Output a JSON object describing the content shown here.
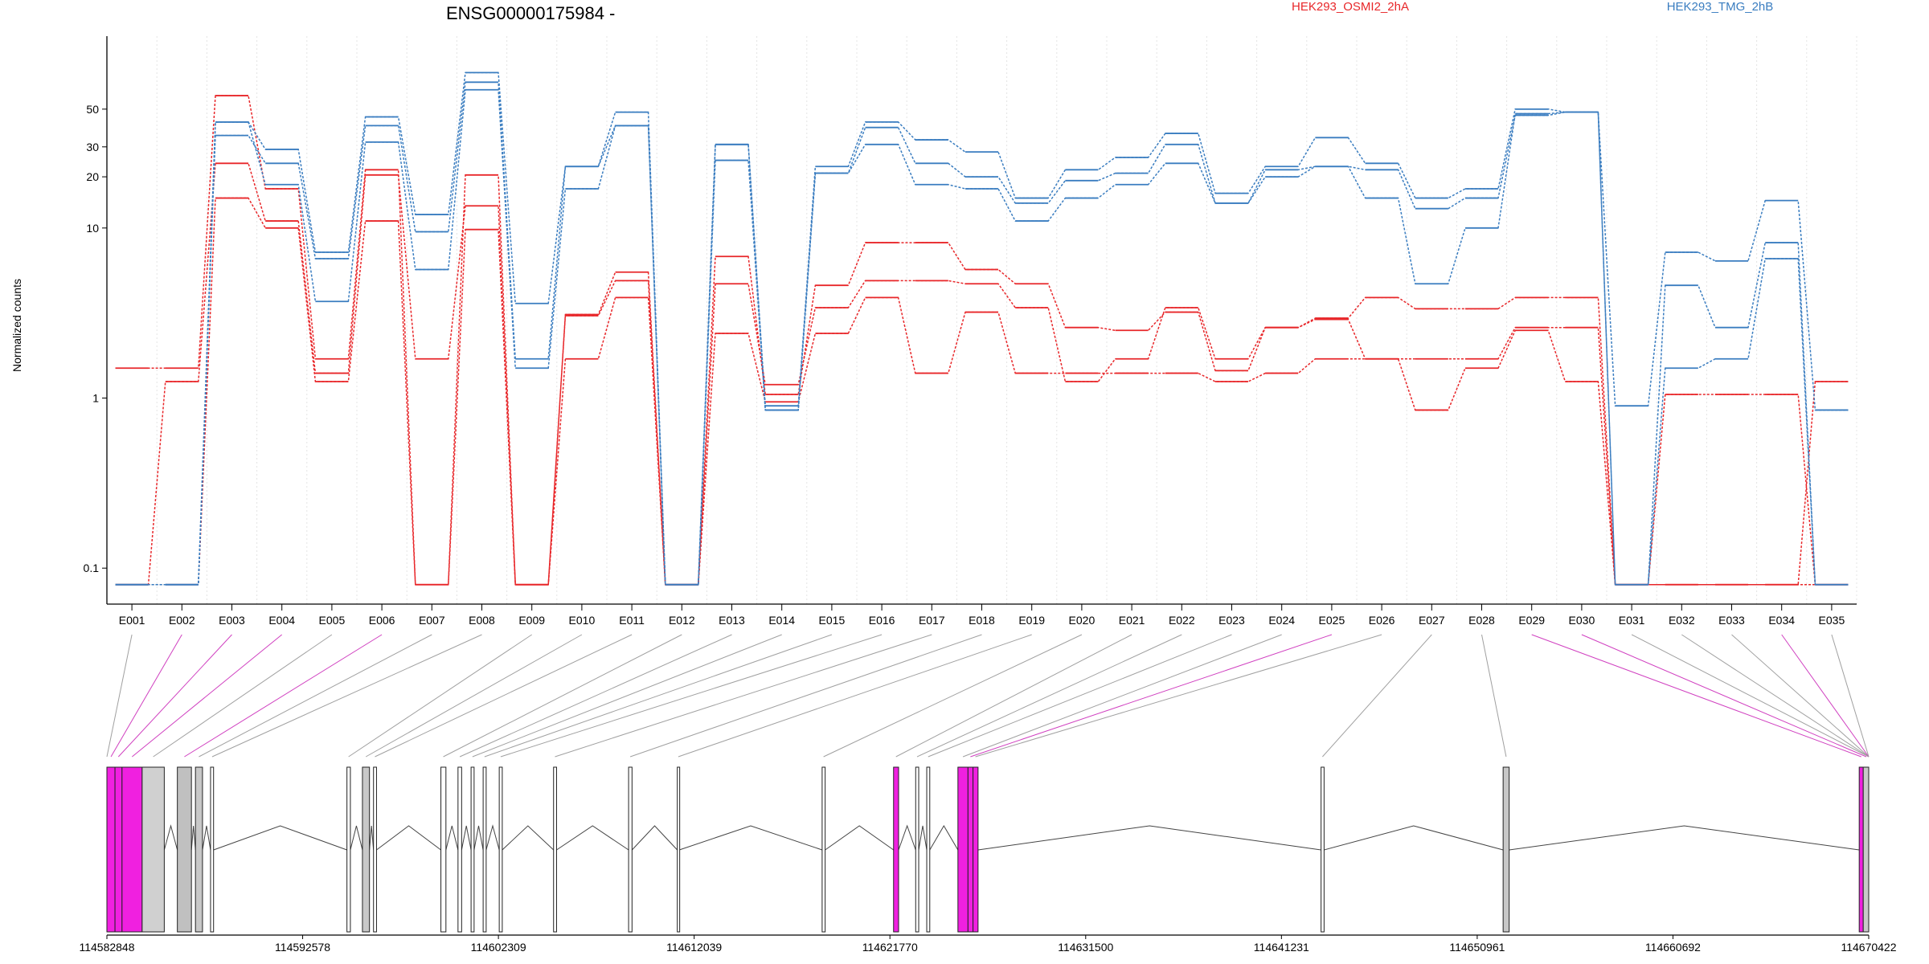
{
  "chart_data": {
    "type": "line",
    "title": "ENSG00000175984 -",
    "ylabel": "Normalized counts",
    "yscale": "log",
    "yticks": [
      "0.1",
      "1",
      "10",
      "20",
      "30",
      "50"
    ],
    "grid": "vertical",
    "legend": [
      "HEK293_OSMI2_2hA",
      "HEK293_TMG_2hB"
    ],
    "legend_placement": "top",
    "categories": [
      "E001",
      "E002",
      "E003",
      "E004",
      "E005",
      "E006",
      "E007",
      "E008",
      "E009",
      "E010",
      "E011",
      "E012",
      "E013",
      "E014",
      "E015",
      "E016",
      "E017",
      "E018",
      "E019",
      "E020",
      "E021",
      "E022",
      "E023",
      "E024",
      "E025",
      "E026",
      "E027",
      "E028",
      "E029",
      "E030",
      "E031",
      "E032",
      "E033",
      "E034",
      "E035"
    ],
    "series": [
      {
        "name": "HEK293_OSMI2_2hA",
        "color": "#e8272a",
        "values": [
          1.5,
          1.5,
          60,
          17,
          1.7,
          22,
          0.08,
          20.5,
          0.08,
          3.1,
          5.5,
          0.08,
          6.8,
          1.05,
          4.6,
          8.2,
          8.2,
          5.7,
          4.7,
          2.6,
          2.5,
          3.2,
          1.45,
          2.6,
          2.95,
          3.9,
          3.35,
          3.35,
          3.9,
          3.9,
          0.08,
          0.08,
          0.08,
          0.08,
          1.25
        ]
      },
      {
        "name": "HEK293_OSMI2_2hA",
        "color": "#e8272a",
        "values": [
          0.08,
          1.25,
          24,
          11,
          1.4,
          20.5,
          1.7,
          13.5,
          0.08,
          3.05,
          4.9,
          0.08,
          4.7,
          1.2,
          3.4,
          4.9,
          4.9,
          4.7,
          3.4,
          1.25,
          1.7,
          3.4,
          1.7,
          2.6,
          2.9,
          1.7,
          1.7,
          1.7,
          2.6,
          2.6,
          0.08,
          1.05,
          1.05,
          1.05,
          0.08
        ]
      },
      {
        "name": "HEK293_OSMI2_2hA",
        "color": "#e8272a",
        "values": [
          0.08,
          0.08,
          15,
          10,
          1.25,
          11,
          0.08,
          9.8,
          0.08,
          1.7,
          3.9,
          0.08,
          2.4,
          0.95,
          2.4,
          3.9,
          1.4,
          3.2,
          1.4,
          1.4,
          1.4,
          1.4,
          1.25,
          1.4,
          1.7,
          1.7,
          0.85,
          1.5,
          2.5,
          1.25,
          0.08,
          0.08,
          0.08,
          0.08,
          0.08
        ]
      },
      {
        "name": "HEK293_TMG_2hB",
        "color": "#3a7dc0",
        "values": [
          0.08,
          0.08,
          42,
          29,
          7.2,
          45,
          12,
          82,
          3.6,
          23,
          48,
          0.08,
          31,
          0.9,
          23,
          42,
          33,
          28,
          15,
          22,
          26,
          36,
          16,
          23,
          34,
          24,
          15,
          17,
          50,
          48,
          0.9,
          7.2,
          6.4,
          14.5,
          0.85
        ]
      },
      {
        "name": "HEK293_TMG_2hB",
        "color": "#3a7dc0",
        "values": [
          0.08,
          0.08,
          35,
          24,
          6.6,
          40,
          9.5,
          72,
          1.7,
          23,
          40,
          0.08,
          25,
          0.85,
          21,
          39,
          24,
          20,
          14,
          19,
          21,
          31,
          14,
          22,
          23,
          22,
          13,
          15,
          46,
          48,
          0.08,
          4.6,
          2.6,
          8.2,
          0.08
        ]
      },
      {
        "name": "HEK293_TMG_2hB",
        "color": "#3a7dc0",
        "values": [
          0.08,
          0.08,
          42,
          18,
          3.7,
          32,
          5.7,
          65,
          1.5,
          17,
          40,
          0.08,
          31,
          0.85,
          21,
          31,
          18,
          17,
          11,
          15,
          18,
          24,
          14,
          20,
          23,
          15,
          4.7,
          10,
          47,
          48,
          0.08,
          1.5,
          1.7,
          6.6,
          0.08
        ]
      }
    ],
    "gene_model": {
      "axis_labels": [
        "114582848",
        "114592578",
        "114602309",
        "114612039",
        "114621770",
        "114631500",
        "114641231",
        "114650961",
        "114660692",
        "114670422"
      ],
      "range": [
        114582848,
        114670422
      ],
      "exons": [
        {
          "start": 114582848,
          "end": 114583250,
          "color": "#f020e0"
        },
        {
          "start": 114583250,
          "end": 114583600,
          "color": "#f020e0"
        },
        {
          "start": 114583600,
          "end": 114584600,
          "color": "#f020e0"
        },
        {
          "start": 114584600,
          "end": 114585700,
          "color": "#d0d0d0"
        },
        {
          "start": 114586350,
          "end": 114587050,
          "color": "#c0c0c0"
        },
        {
          "start": 114587250,
          "end": 114587600,
          "color": "#c8c8c8"
        },
        {
          "start": 114588000,
          "end": 114588150,
          "color": "#ffffff"
        },
        {
          "start": 114594780,
          "end": 114594950,
          "color": "#ffffff"
        },
        {
          "start": 114595550,
          "end": 114595900,
          "color": "#c8c8c8"
        },
        {
          "start": 114596100,
          "end": 114596250,
          "color": "#ffffff"
        },
        {
          "start": 114599450,
          "end": 114599700,
          "color": "#ffffff"
        },
        {
          "start": 114600300,
          "end": 114600480,
          "color": "#ffffff"
        },
        {
          "start": 114600950,
          "end": 114601100,
          "color": "#ffffff"
        },
        {
          "start": 114601550,
          "end": 114601700,
          "color": "#ffffff"
        },
        {
          "start": 114602350,
          "end": 114602500,
          "color": "#ffffff"
        },
        {
          "start": 114605050,
          "end": 114605200,
          "color": "#ffffff"
        },
        {
          "start": 114608780,
          "end": 114608950,
          "color": "#ffffff"
        },
        {
          "start": 114611200,
          "end": 114611300,
          "color": "#ffffff"
        },
        {
          "start": 114618400,
          "end": 114618550,
          "color": "#ffffff"
        },
        {
          "start": 114621950,
          "end": 114622200,
          "color": "#f020e0"
        },
        {
          "start": 114623050,
          "end": 114623200,
          "color": "#ffffff"
        },
        {
          "start": 114623600,
          "end": 114623750,
          "color": "#ffffff"
        },
        {
          "start": 114625150,
          "end": 114625650,
          "color": "#f020e0"
        },
        {
          "start": 114625650,
          "end": 114625900,
          "color": "#f020e0"
        },
        {
          "start": 114625900,
          "end": 114626150,
          "color": "#f020e0"
        },
        {
          "start": 114643200,
          "end": 114643350,
          "color": "#ffffff"
        },
        {
          "start": 114652250,
          "end": 114652550,
          "color": "#c8c8c8"
        },
        {
          "start": 114669950,
          "end": 114670150,
          "color": "#f020e0"
        },
        {
          "start": 114670150,
          "end": 114670422,
          "color": "#c8c8c8"
        }
      ],
      "connector_targets": [
        114582848,
        114583050,
        114583420,
        114584100,
        114585150,
        114586700,
        114587420,
        114588080,
        114594860,
        114595720,
        114596170,
        114599570,
        114600390,
        114601020,
        114601620,
        114602420,
        114605120,
        114608860,
        114611250,
        114618470,
        114622070,
        114623120,
        114623670,
        114625400,
        114625770,
        114626020,
        114643270,
        114652400,
        114670050,
        114670300
      ],
      "highlighted": [
        "E002",
        "E003",
        "E004",
        "E006",
        "E025",
        "E029",
        "E030",
        "E034"
      ]
    }
  }
}
